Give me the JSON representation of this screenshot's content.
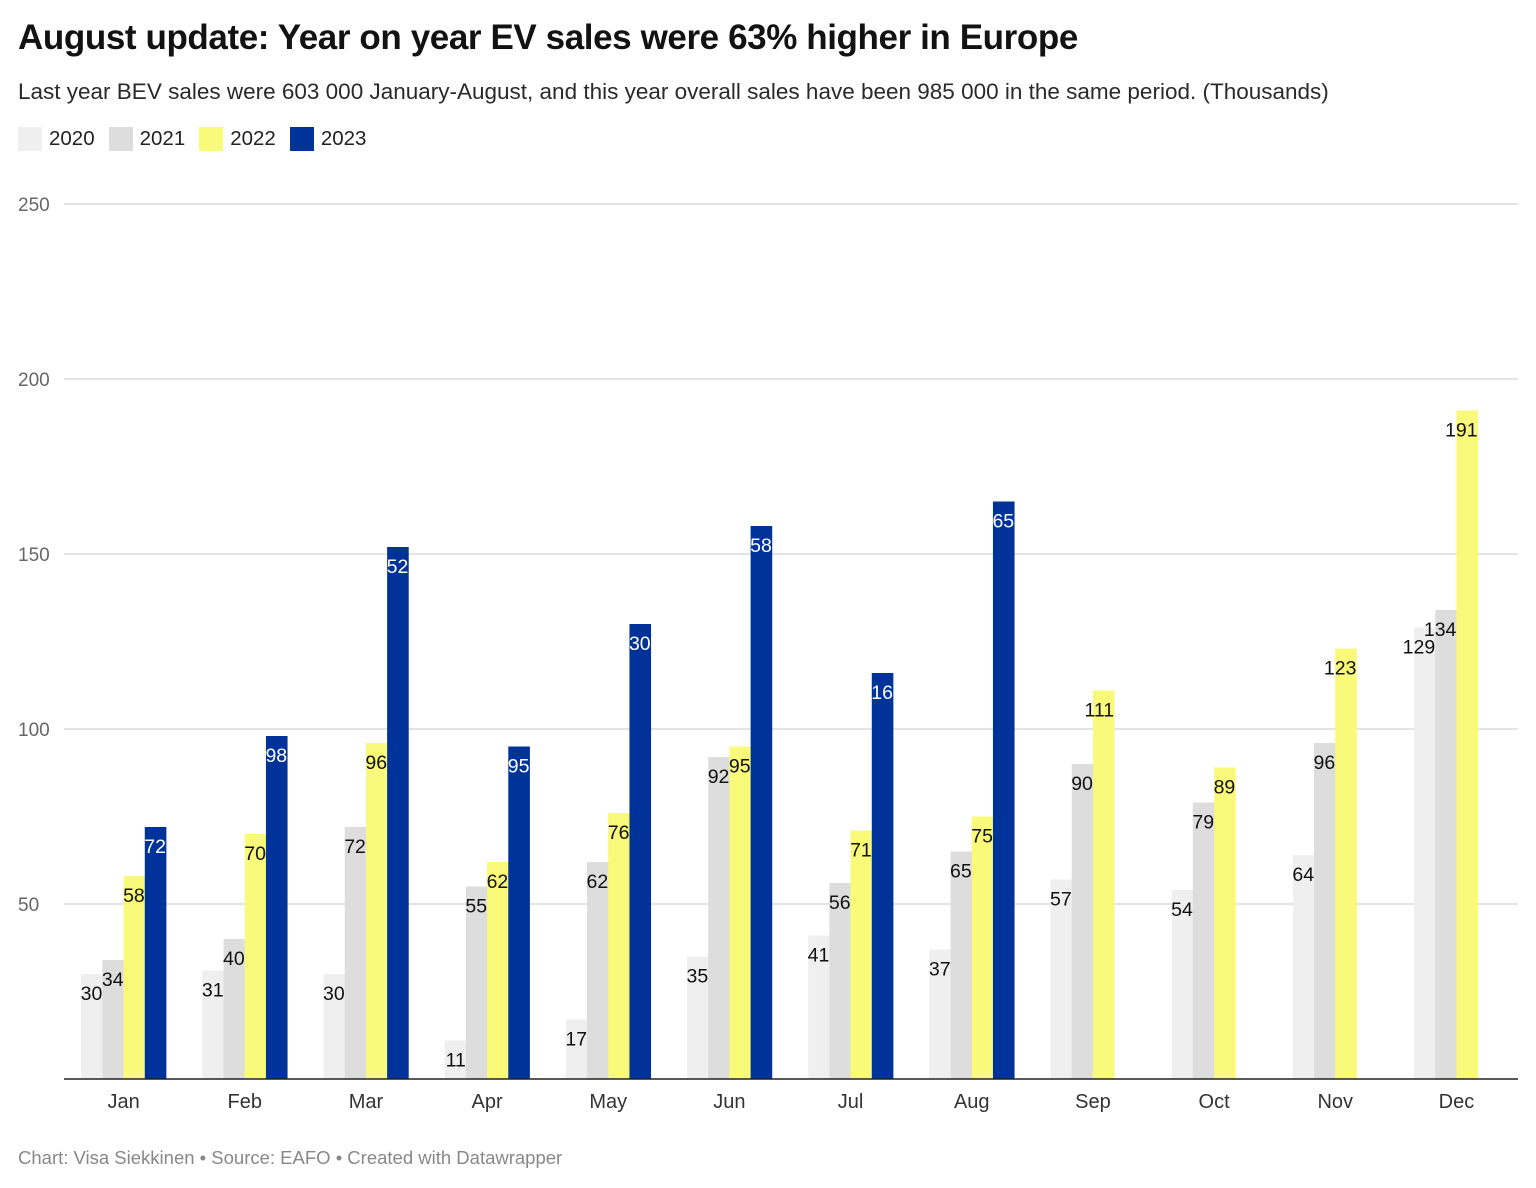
{
  "header": {
    "title": "August update: Year on year EV sales were 63% higher in Europe",
    "subtitle": "Last year BEV sales were 603 000 January-August, and this year overall sales have been 985 000 in the same period. (Thousands)"
  },
  "legend": [
    {
      "label": "2020",
      "color": "#efefef"
    },
    {
      "label": "2021",
      "color": "#dddddd"
    },
    {
      "label": "2022",
      "color": "#f9f97a"
    },
    {
      "label": "2023",
      "color": "#003399"
    }
  ],
  "footer": {
    "text": "Chart: Visa Siekkinen • Source: EAFO • Created with Datawrapper"
  },
  "chart_data": {
    "type": "bar",
    "title": "August update: Year on year EV sales were 63% higher in Europe",
    "subtitle": "Last year BEV sales were 603 000 January-August, and this year overall sales have been 985 000 in the same period. (Thousands)",
    "xlabel": "",
    "ylabel": "",
    "ylim": [
      0,
      250
    ],
    "yticks": [
      50,
      100,
      150,
      200,
      250
    ],
    "grid": true,
    "legend_position": "top-left",
    "categories": [
      "Jan",
      "Feb",
      "Mar",
      "Apr",
      "May",
      "Jun",
      "Jul",
      "Aug",
      "Sep",
      "Oct",
      "Nov",
      "Dec"
    ],
    "series": [
      {
        "name": "2020",
        "color": "#efefef",
        "label_color": "#111111",
        "values": [
          30,
          31,
          30,
          11,
          17,
          35,
          41,
          37,
          57,
          54,
          64,
          129
        ]
      },
      {
        "name": "2021",
        "color": "#dddddd",
        "label_color": "#111111",
        "values": [
          34,
          40,
          72,
          55,
          62,
          92,
          56,
          65,
          90,
          79,
          96,
          134
        ]
      },
      {
        "name": "2022",
        "color": "#f9f97a",
        "label_color": "#111111",
        "values": [
          58,
          70,
          96,
          62,
          76,
          95,
          71,
          75,
          111,
          89,
          123,
          191
        ]
      },
      {
        "name": "2023",
        "color": "#003399",
        "label_color": "#ffffff",
        "values": [
          72,
          98,
          152,
          95,
          130,
          158,
          116,
          165,
          null,
          null,
          null,
          null
        ]
      }
    ],
    "source": "EAFO",
    "credit": "Chart: Visa Siekkinen • Source: EAFO • Created with Datawrapper"
  }
}
